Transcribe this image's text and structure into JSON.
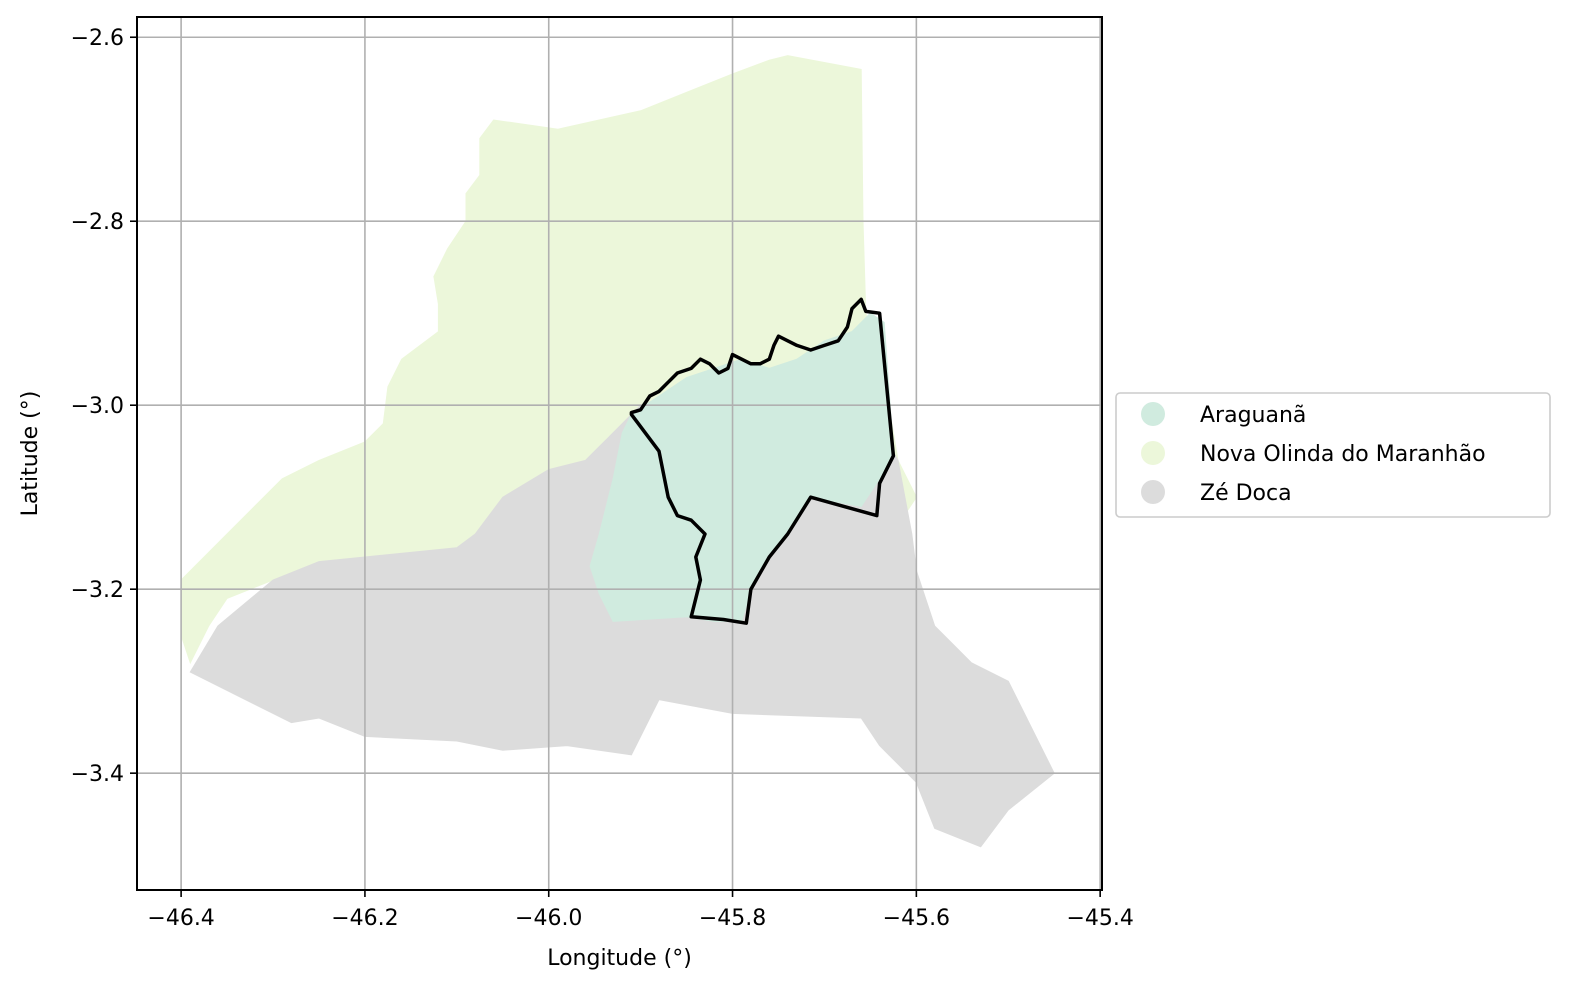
{
  "chart_data": {
    "type": "map",
    "xlabel": "Longitude (°)",
    "ylabel": "Latitude (°)",
    "xlim": [
      -46.448,
      -45.398
    ],
    "ylim": [
      -3.527,
      -2.578
    ],
    "xticks": [
      -46.4,
      -46.2,
      -46.0,
      -45.8,
      -45.6,
      -45.4
    ],
    "yticks": [
      -3.4,
      -3.2,
      -3.0,
      -2.8,
      -2.6
    ],
    "xtick_labels": [
      "−46.4",
      "−46.2",
      "−46.0",
      "−45.8",
      "−45.6",
      "−45.4"
    ],
    "ytick_labels": [
      "−3.4",
      "−3.2",
      "−3.0",
      "−2.8",
      "−2.6"
    ],
    "grid": true,
    "legend_position": "outside-right",
    "regions": [
      {
        "name": "Nova Olinda do Maranhão",
        "color": "#ecf7da",
        "coords": [
          [
            -46.4,
            -3.19
          ],
          [
            -46.37,
            -3.16
          ],
          [
            -46.33,
            -3.12
          ],
          [
            -46.29,
            -3.08
          ],
          [
            -46.25,
            -3.06
          ],
          [
            -46.2,
            -3.04
          ],
          [
            -46.18,
            -3.02
          ],
          [
            -46.175,
            -2.98
          ],
          [
            -46.16,
            -2.95
          ],
          [
            -46.12,
            -2.92
          ],
          [
            -46.12,
            -2.89
          ],
          [
            -46.125,
            -2.86
          ],
          [
            -46.11,
            -2.83
          ],
          [
            -46.09,
            -2.8
          ],
          [
            -46.09,
            -2.77
          ],
          [
            -46.075,
            -2.75
          ],
          [
            -46.075,
            -2.71
          ],
          [
            -46.06,
            -2.69
          ],
          [
            -45.99,
            -2.7
          ],
          [
            -45.9,
            -2.68
          ],
          [
            -45.85,
            -2.66
          ],
          [
            -45.8,
            -2.64
          ],
          [
            -45.76,
            -2.625
          ],
          [
            -45.74,
            -2.62
          ],
          [
            -45.66,
            -2.635
          ],
          [
            -45.658,
            -2.8
          ],
          [
            -45.655,
            -2.9
          ],
          [
            -45.63,
            -3.0
          ],
          [
            -45.62,
            -3.06
          ],
          [
            -45.6,
            -3.1
          ],
          [
            -45.62,
            -3.13
          ],
          [
            -45.7,
            -3.11
          ],
          [
            -45.8,
            -3.09
          ],
          [
            -45.9,
            -3.07
          ],
          [
            -46.0,
            -3.07
          ],
          [
            -46.05,
            -3.1
          ],
          [
            -46.08,
            -3.14
          ],
          [
            -46.1,
            -3.155
          ],
          [
            -46.15,
            -3.16
          ],
          [
            -46.2,
            -3.165
          ],
          [
            -46.25,
            -3.17
          ],
          [
            -46.3,
            -3.19
          ],
          [
            -46.35,
            -3.21
          ],
          [
            -46.37,
            -3.24
          ],
          [
            -46.39,
            -3.28
          ],
          [
            -46.4,
            -3.25
          ]
        ]
      },
      {
        "name": "Zé Doca",
        "color": "#dcdcdc",
        "coords": [
          [
            -46.39,
            -3.29
          ],
          [
            -46.36,
            -3.24
          ],
          [
            -46.3,
            -3.19
          ],
          [
            -46.25,
            -3.17
          ],
          [
            -46.2,
            -3.165
          ],
          [
            -46.15,
            -3.16
          ],
          [
            -46.1,
            -3.155
          ],
          [
            -46.08,
            -3.14
          ],
          [
            -46.05,
            -3.1
          ],
          [
            -46.0,
            -3.07
          ],
          [
            -45.96,
            -3.06
          ],
          [
            -45.93,
            -3.03
          ],
          [
            -45.9,
            -3.0
          ],
          [
            -45.8,
            -2.99
          ],
          [
            -45.7,
            -3.0
          ],
          [
            -45.65,
            -3.01
          ],
          [
            -45.62,
            -3.06
          ],
          [
            -45.605,
            -3.14
          ],
          [
            -45.6,
            -3.18
          ],
          [
            -45.58,
            -3.24
          ],
          [
            -45.54,
            -3.28
          ],
          [
            -45.5,
            -3.3
          ],
          [
            -45.45,
            -3.4
          ],
          [
            -45.5,
            -3.44
          ],
          [
            -45.53,
            -3.48
          ],
          [
            -45.58,
            -3.46
          ],
          [
            -45.6,
            -3.41
          ],
          [
            -45.64,
            -3.37
          ],
          [
            -45.66,
            -3.34
          ],
          [
            -45.8,
            -3.335
          ],
          [
            -45.88,
            -3.32
          ],
          [
            -45.91,
            -3.38
          ],
          [
            -45.98,
            -3.37
          ],
          [
            -46.05,
            -3.375
          ],
          [
            -46.1,
            -3.365
          ],
          [
            -46.2,
            -3.36
          ],
          [
            -46.25,
            -3.34
          ],
          [
            -46.28,
            -3.345
          ],
          [
            -46.39,
            -3.29
          ]
        ]
      },
      {
        "name": "Araguanã",
        "color": "#d0ebdf",
        "coords": [
          [
            -45.91,
            -3.01
          ],
          [
            -45.88,
            -2.99
          ],
          [
            -45.85,
            -2.97
          ],
          [
            -45.82,
            -2.96
          ],
          [
            -45.79,
            -2.95
          ],
          [
            -45.76,
            -2.96
          ],
          [
            -45.73,
            -2.95
          ],
          [
            -45.7,
            -2.93
          ],
          [
            -45.67,
            -2.92
          ],
          [
            -45.65,
            -2.9
          ],
          [
            -45.635,
            -2.91
          ],
          [
            -45.625,
            -3.05
          ],
          [
            -45.64,
            -3.08
          ],
          [
            -45.66,
            -3.11
          ],
          [
            -45.715,
            -3.1
          ],
          [
            -45.75,
            -3.15
          ],
          [
            -45.78,
            -3.2
          ],
          [
            -45.79,
            -3.235
          ],
          [
            -45.82,
            -3.235
          ],
          [
            -45.85,
            -3.23
          ],
          [
            -45.93,
            -3.235
          ],
          [
            -45.945,
            -3.205
          ],
          [
            -45.955,
            -3.175
          ],
          [
            -45.945,
            -3.14
          ],
          [
            -45.93,
            -3.08
          ],
          [
            -45.92,
            -3.03
          ]
        ]
      }
    ],
    "highlight_outline": {
      "name": "Araguanã",
      "color": "#000000",
      "coords": [
        [
          -45.91,
          -3.008
        ],
        [
          -45.9,
          -3.005
        ],
        [
          -45.89,
          -2.99
        ],
        [
          -45.88,
          -2.985
        ],
        [
          -45.87,
          -2.975
        ],
        [
          -45.86,
          -2.965
        ],
        [
          -45.845,
          -2.96
        ],
        [
          -45.835,
          -2.95
        ],
        [
          -45.825,
          -2.955
        ],
        [
          -45.815,
          -2.965
        ],
        [
          -45.805,
          -2.96
        ],
        [
          -45.8,
          -2.945
        ],
        [
          -45.79,
          -2.95
        ],
        [
          -45.78,
          -2.955
        ],
        [
          -45.77,
          -2.955
        ],
        [
          -45.76,
          -2.95
        ],
        [
          -45.755,
          -2.935
        ],
        [
          -45.75,
          -2.925
        ],
        [
          -45.74,
          -2.93
        ],
        [
          -45.73,
          -2.935
        ],
        [
          -45.715,
          -2.94
        ],
        [
          -45.7,
          -2.935
        ],
        [
          -45.685,
          -2.93
        ],
        [
          -45.675,
          -2.915
        ],
        [
          -45.67,
          -2.895
        ],
        [
          -45.66,
          -2.885
        ],
        [
          -45.655,
          -2.898
        ],
        [
          -45.64,
          -2.9
        ],
        [
          -45.625,
          -3.055
        ],
        [
          -45.64,
          -3.085
        ],
        [
          -45.643,
          -3.12
        ],
        [
          -45.715,
          -3.1
        ],
        [
          -45.74,
          -3.14
        ],
        [
          -45.76,
          -3.165
        ],
        [
          -45.78,
          -3.2
        ],
        [
          -45.785,
          -3.237
        ],
        [
          -45.81,
          -3.233
        ],
        [
          -45.845,
          -3.23
        ],
        [
          -45.84,
          -3.21
        ],
        [
          -45.835,
          -3.19
        ],
        [
          -45.84,
          -3.165
        ],
        [
          -45.83,
          -3.14
        ],
        [
          -45.845,
          -3.125
        ],
        [
          -45.86,
          -3.12
        ],
        [
          -45.87,
          -3.1
        ],
        [
          -45.88,
          -3.05
        ],
        [
          -45.91,
          -3.01
        ]
      ]
    }
  }
}
